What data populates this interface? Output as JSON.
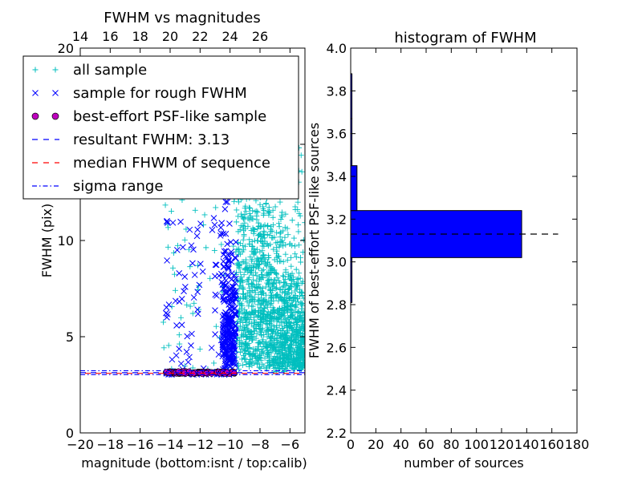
{
  "chart_data": [
    {
      "type": "scatter",
      "title": "FWHM vs magnitudes",
      "xlabel": "magnitude (bottom:isnt / top:calib)",
      "ylabel": "FWHM (pix)",
      "xlim": [
        -20,
        -5
      ],
      "ylim": [
        0,
        20
      ],
      "x_ticks": [
        "−20",
        "−18",
        "−16",
        "−14",
        "−12",
        "−10",
        "−8",
        "−6"
      ],
      "y_ticks": [
        "0",
        "5",
        "10"
      ],
      "top_ticks": [
        "14",
        "16",
        "18",
        "20",
        "22",
        "24",
        "26"
      ],
      "top_axis_offset": 34,
      "grid": false,
      "legend_position": "upper-left",
      "series": [
        {
          "name": "all sample",
          "marker": "+",
          "color": "#00bfbf",
          "x_range": [
            -14.5,
            -5
          ],
          "y_range": [
            2.5,
            20
          ]
        },
        {
          "name": "sample for rough FWHM",
          "marker": "x",
          "color": "#0000ff",
          "x_range": [
            -14.5,
            -9.6
          ],
          "y_range": [
            3.0,
            12.3
          ]
        },
        {
          "name": "best-effort PSF-like sample",
          "marker": "o",
          "color": "#bf00bf",
          "x_range": [
            -14.3,
            -9.7
          ],
          "y_range": [
            3.05,
            3.25
          ]
        }
      ],
      "lines": [
        {
          "name": "resultant FWHM: 3.13",
          "style": "dashed",
          "color": "#0000ff",
          "y": 3.13
        },
        {
          "name": "median FHWM of sequence",
          "style": "dashed",
          "color": "#ff0000",
          "y": 3.13
        },
        {
          "name": "sigma range",
          "style": "dashdot",
          "color": "#0000ff",
          "y": [
            3.03,
            3.23
          ]
        }
      ]
    },
    {
      "type": "bar",
      "orientation": "horizontal",
      "title": "histogram of FWHM",
      "xlabel": "number of sources",
      "ylabel": "FWHM of best-effort PSF-like sources",
      "xlim": [
        0,
        180
      ],
      "ylim": [
        2.2,
        4.0
      ],
      "x_ticks": [
        "0",
        "20",
        "40",
        "60",
        "80",
        "100",
        "120",
        "140",
        "160",
        "180"
      ],
      "y_ticks": [
        "2.2",
        "2.4",
        "2.6",
        "2.8",
        "3.0",
        "3.2",
        "3.4",
        "3.6",
        "3.8",
        "4.0"
      ],
      "bar_color": "#0000ff",
      "bins": [
        {
          "from": 2.81,
          "to": 3.02,
          "count": 1
        },
        {
          "from": 3.02,
          "to": 3.24,
          "count": 136
        },
        {
          "from": 3.24,
          "to": 3.45,
          "count": 5
        },
        {
          "from": 3.45,
          "to": 3.67,
          "count": 1
        },
        {
          "from": 3.67,
          "to": 3.88,
          "count": 1
        }
      ],
      "reference_line": {
        "y": 3.13,
        "style": "dashed",
        "color": "#000000",
        "x_extent": [
          0,
          165
        ]
      }
    }
  ],
  "colors": {
    "cyan": "#00bfbf",
    "blue": "#0000ff",
    "magenta": "#bf00bf",
    "red": "#ff0000",
    "black": "#000000"
  }
}
